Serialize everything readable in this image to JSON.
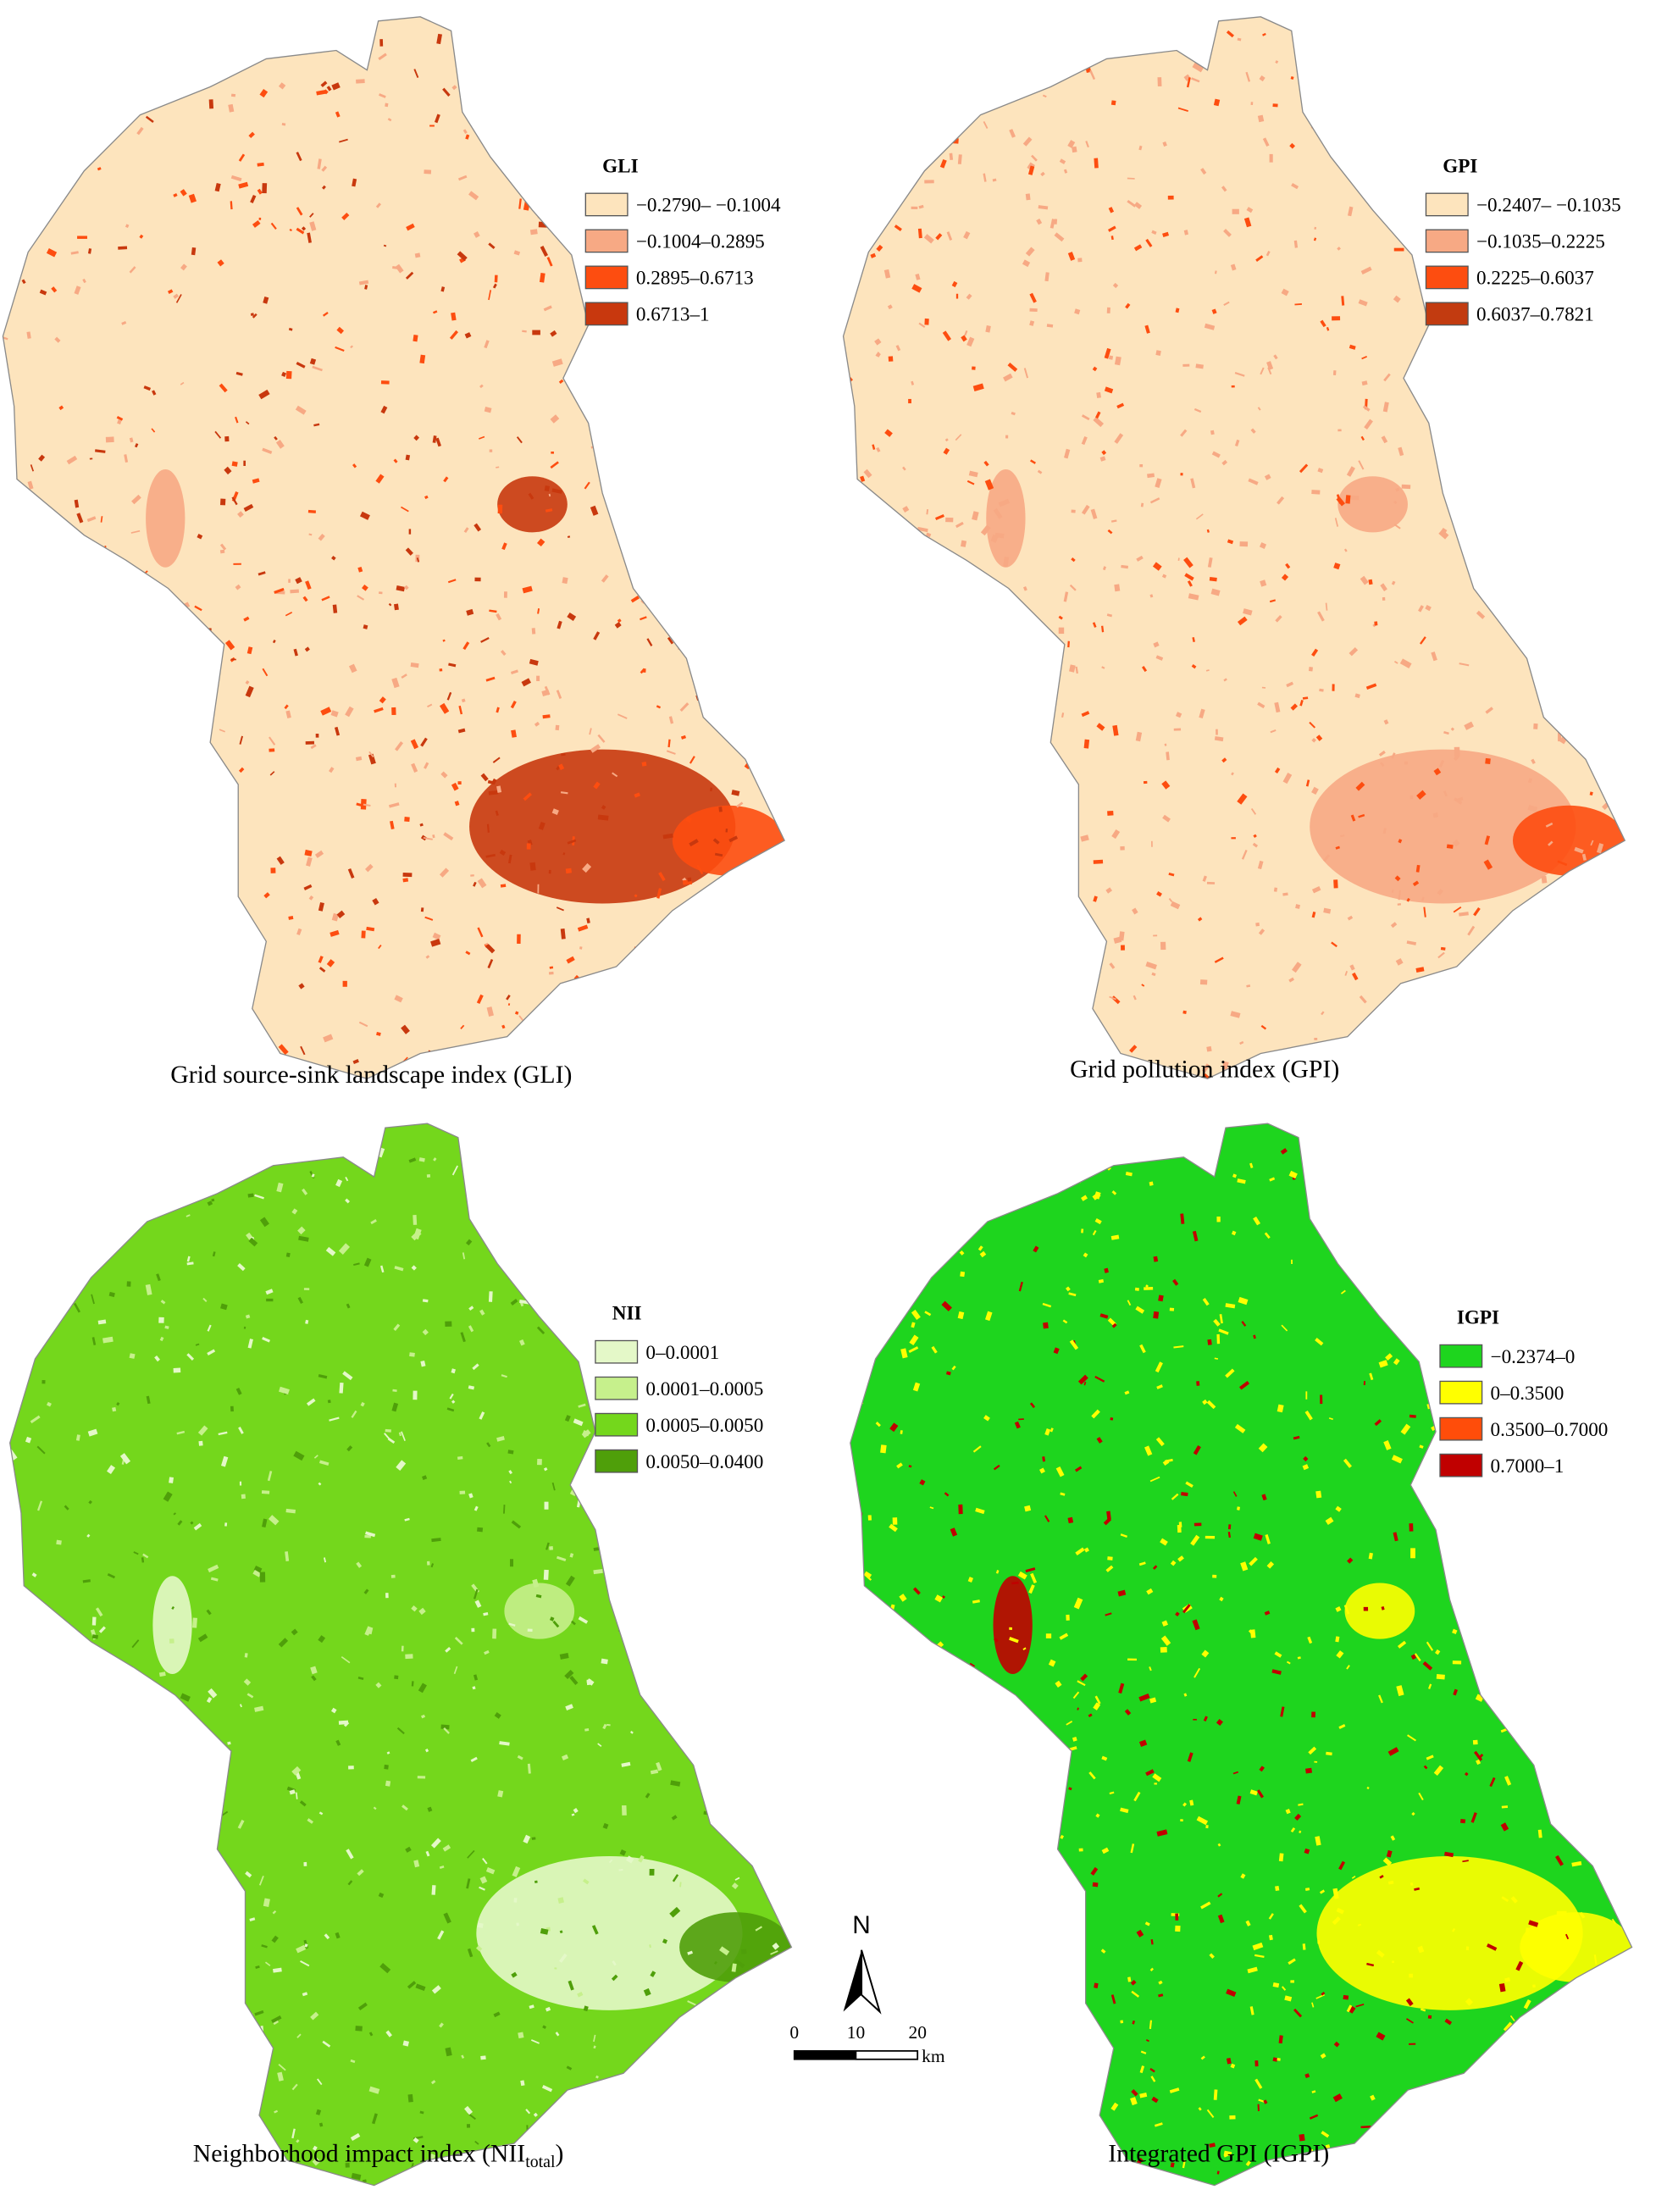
{
  "panels": [
    {
      "legend": {
        "title": "GLI",
        "items": [
          {
            "label": "−0.2790– −0.1004",
            "color": "#fde4bd"
          },
          {
            "label": "−0.1004–0.2895",
            "color": "#f7a984"
          },
          {
            "label": "0.2895–0.6713",
            "color": "#fd4d10"
          },
          {
            "label": "0.6713–1",
            "color": "#c8380e"
          }
        ]
      },
      "caption": "Grid source-sink landscape index (GLI)"
    },
    {
      "legend": {
        "title": "GPI",
        "items": [
          {
            "label": "−0.2407– −0.1035",
            "color": "#fde4bd"
          },
          {
            "label": "−0.1035–0.2225",
            "color": "#f7a984"
          },
          {
            "label": "0.2225–0.6037",
            "color": "#fd4d10"
          },
          {
            "label": "0.6037–0.7821",
            "color": "#c23b10"
          }
        ]
      },
      "caption": "Grid pollution index (GPI)"
    },
    {
      "legend": {
        "title": "NII",
        "items": [
          {
            "label": "0–0.0001",
            "color": "#e4f8c8"
          },
          {
            "label": "0.0001–0.0005",
            "color": "#c6f08c"
          },
          {
            "label": "0.0005–0.0050",
            "color": "#74d71c"
          },
          {
            "label": "0.0050–0.0400",
            "color": "#4f9f0a"
          }
        ]
      },
      "caption": "Neighborhood impact index (NII",
      "caption_subscript": "total",
      "caption_suffix": ")"
    },
    {
      "legend": {
        "title": "IGPI",
        "items": [
          {
            "label": "−0.2374–0",
            "color": "#1ed51e"
          },
          {
            "label": "0–0.3500",
            "color": "#ffff00"
          },
          {
            "label": "0.3500–0.7000",
            "color": "#ff4d0a"
          },
          {
            "label": "0.7000–1",
            "color": "#c00000"
          }
        ]
      },
      "caption": "Integrated GPI (IGPI)"
    }
  ],
  "north_arrow": "N",
  "scale_bar": {
    "ticks": [
      "0",
      "10",
      "20"
    ],
    "unit": "km"
  }
}
